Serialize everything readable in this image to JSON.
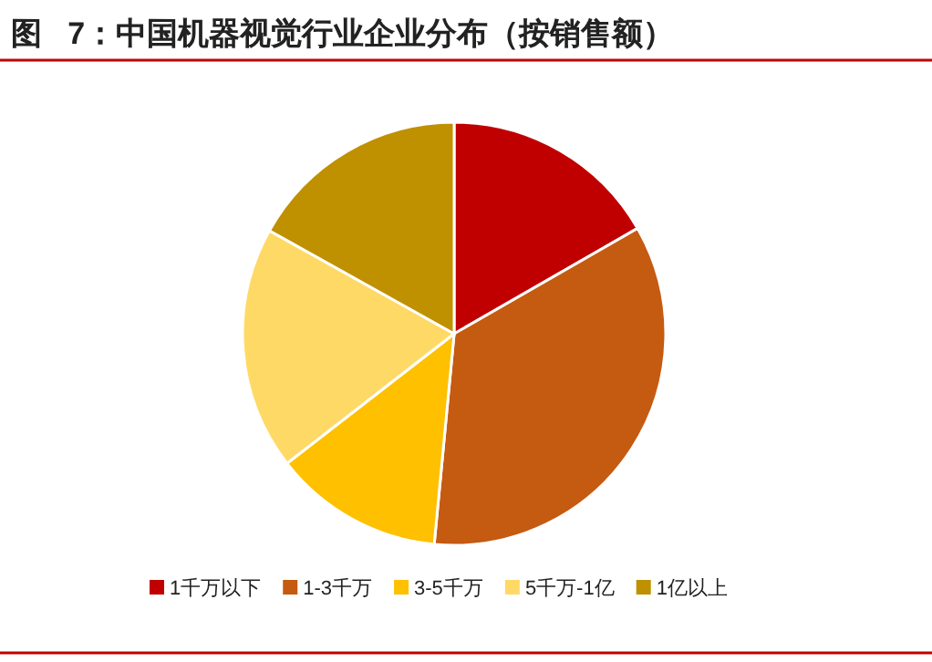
{
  "chart_data": {
    "type": "pie",
    "title": "图   7：中国机器视觉行业企业分布（按销售额）",
    "categories": [
      "1千万以下",
      "1-3千万",
      "3-5千万",
      "5千万-1亿",
      "1亿以上"
    ],
    "values": [
      16.7,
      34.8,
      13.0,
      18.6,
      16.9
    ],
    "colors": [
      "#c00000",
      "#c55a11",
      "#ffc000",
      "#ffd966",
      "#bf9000"
    ],
    "legend": "bottom"
  }
}
